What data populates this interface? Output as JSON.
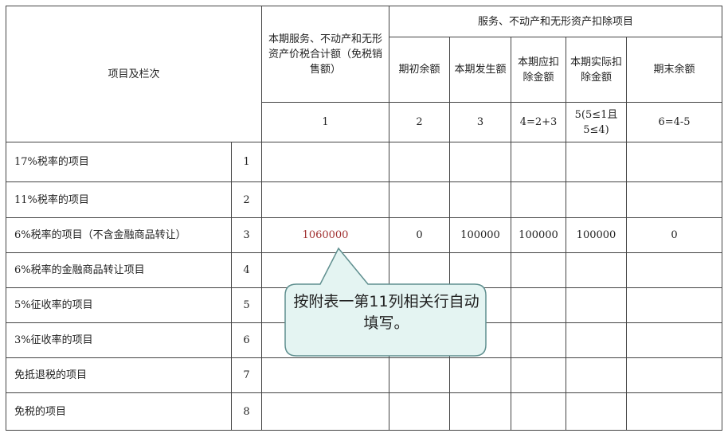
{
  "header": {
    "item_col": "项目及栏次",
    "col1_title": "本期服务、不动产和无形资产价税合计额（免税销售额）",
    "group_title": "服务、不动产和无形资产扣除项目",
    "sub_cols": [
      "期初余额",
      "本期发生额",
      "本期应扣除金额",
      "本期实际扣除金额",
      "期末余额"
    ],
    "col_numbers": [
      "1",
      "2",
      "3",
      "4=2+3",
      "5(5≤1且5≤4)",
      "6=4-5"
    ]
  },
  "rows": [
    {
      "label": "17%税率的项目",
      "no": "1",
      "values": [
        "",
        "",
        "",
        "",
        "",
        ""
      ]
    },
    {
      "label": "11%税率的项目",
      "no": "2",
      "values": [
        "",
        "",
        "",
        "",
        "",
        ""
      ]
    },
    {
      "label": "6%税率的项目（不含金融商品转让）",
      "no": "3",
      "values": [
        "1060000",
        "0",
        "100000",
        "100000",
        "100000",
        "0"
      ]
    },
    {
      "label": "6%税率的金融商品转让项目",
      "no": "4",
      "values": [
        "",
        "",
        "",
        "",
        "",
        ""
      ]
    },
    {
      "label": "5%征收率的项目",
      "no": "5",
      "values": [
        "",
        "",
        "",
        "",
        "",
        ""
      ]
    },
    {
      "label": "3%征收率的项目",
      "no": "6",
      "values": [
        "",
        "",
        "",
        "",
        "",
        ""
      ]
    },
    {
      "label": "免抵退税的项目",
      "no": "7",
      "values": [
        "",
        "",
        "",
        "",
        "",
        ""
      ]
    },
    {
      "label": "免税的项目",
      "no": "8",
      "values": [
        "",
        "",
        "",
        "",
        "",
        ""
      ]
    }
  ],
  "callout": {
    "text": "按附表一第11列相关行自动填写。"
  },
  "colors": {
    "highlight_value": "#a03030",
    "callout_fill": "#e4f4f2"
  }
}
